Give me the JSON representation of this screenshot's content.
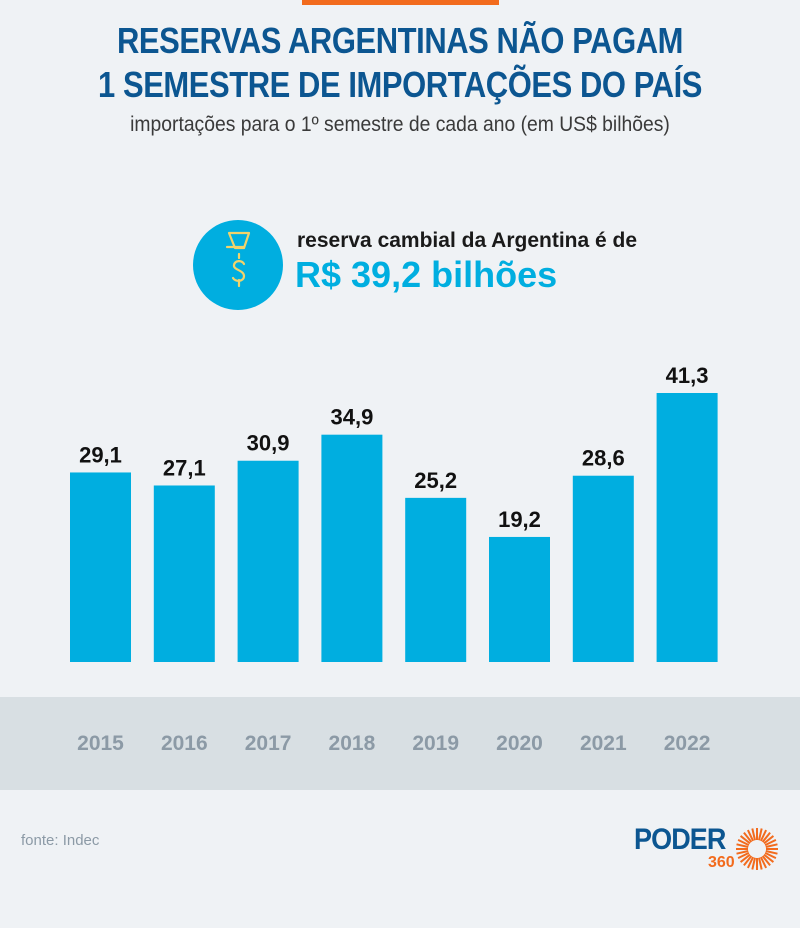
{
  "header": {
    "title_line1": "RESERVAS ARGENTINAS NÃO PAGAM",
    "title_line2": "1 SEMESTRE DE IMPORTAÇÕES DO PAÍS",
    "subtitle": "importações para o 1º semestre de cada ano (em US$ bilhões)"
  },
  "highlight": {
    "icon": "funnel-dollar-icon",
    "label": "reserva cambial da Argentina é de",
    "value": "R$ 39,2 bilhões"
  },
  "colors": {
    "accent_orange": "#f26b1d",
    "title_blue": "#0c5691",
    "bar_blue": "#00aee0",
    "icon_yellow": "#f2d36b",
    "axis_band": "#d8dfe3",
    "axis_text": "#8c9aa6",
    "background": "#eff2f5"
  },
  "chart_data": {
    "type": "bar",
    "title": "RESERVAS ARGENTINAS NÃO PAGAM 1 SEMESTRE DE IMPORTAÇÕES DO PAÍS",
    "subtitle": "importações para o 1º semestre de cada ano (em US$ bilhões)",
    "xlabel": "",
    "ylabel": "",
    "categories": [
      "2015",
      "2016",
      "2017",
      "2018",
      "2019",
      "2020",
      "2021",
      "2022"
    ],
    "values": [
      29.1,
      27.1,
      30.9,
      34.9,
      25.2,
      19.2,
      28.6,
      41.3
    ],
    "value_labels": [
      "29,1",
      "27,1",
      "30,9",
      "34,9",
      "25,2",
      "19,2",
      "28,6",
      "41,3"
    ],
    "ylim": [
      0,
      41.3
    ],
    "grid": false,
    "legend": "none",
    "y_axis_visible": false
  },
  "footer": {
    "source": "fonte: Indec",
    "logo_word": "PODER",
    "logo_number": "360"
  }
}
